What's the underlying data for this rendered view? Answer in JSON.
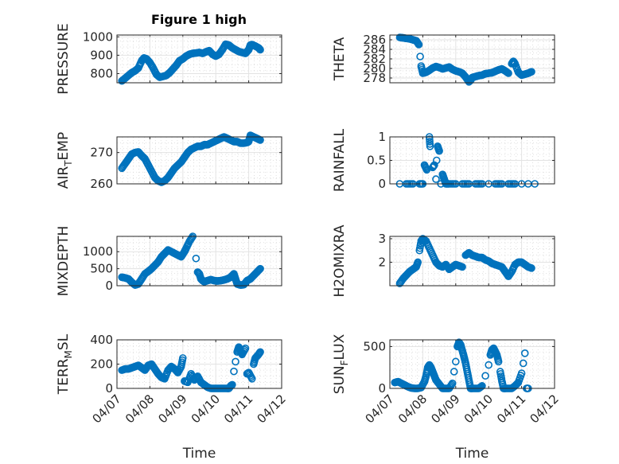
{
  "figure_title": "Figure 1 high",
  "marker_color": "#0072BD",
  "chart_data": [
    {
      "type": "scatter",
      "id": "pressure",
      "title": "Figure 1 high",
      "ylabel": "PRESSURE",
      "ylabel_sub": null,
      "ylim": [
        750,
        1010
      ],
      "yticks": [
        800,
        900,
        1000
      ],
      "xlim": [
        "04/07",
        "04/12"
      ],
      "xticks": [
        "04/07",
        "04/08",
        "04/09",
        "04/10",
        "04/11",
        "04/12"
      ],
      "x": [
        0.15,
        0.25,
        0.35,
        0.45,
        0.55,
        0.65,
        0.75,
        0.82,
        0.9,
        1.0,
        1.1,
        1.2,
        1.3,
        1.4,
        1.5,
        1.6,
        1.7,
        1.8,
        1.9,
        2.0,
        2.1,
        2.2,
        2.3,
        2.4,
        2.5,
        2.6,
        2.7,
        2.8,
        2.9,
        3.0,
        3.1,
        3.2,
        3.3,
        3.4,
        3.5,
        3.6,
        3.7,
        3.8,
        3.9,
        3.95,
        4.0,
        4.05,
        4.1,
        4.2,
        4.3,
        4.35
      ],
      "values": [
        760,
        775,
        790,
        805,
        815,
        830,
        870,
        885,
        880,
        860,
        830,
        795,
        780,
        785,
        790,
        805,
        825,
        845,
        870,
        880,
        895,
        905,
        910,
        912,
        915,
        910,
        918,
        925,
        905,
        895,
        905,
        930,
        960,
        955,
        940,
        930,
        920,
        915,
        910,
        920,
        930,
        955,
        958,
        950,
        940,
        930
      ]
    },
    {
      "type": "scatter",
      "id": "theta",
      "ylabel": "THETA",
      "ylabel_sub": null,
      "ylim": [
        277,
        287
      ],
      "yticks": [
        278,
        280,
        282,
        284,
        286
      ],
      "xlim": [
        "04/07",
        "04/12"
      ],
      "xticks": [
        "04/07",
        "04/08",
        "04/09",
        "04/10",
        "04/11",
        "04/12"
      ],
      "x": [
        0.3,
        0.4,
        0.5,
        0.6,
        0.7,
        0.8,
        0.88,
        0.92,
        0.95,
        1.0,
        1.1,
        1.2,
        1.3,
        1.4,
        1.5,
        1.6,
        1.7,
        1.8,
        1.9,
        2.0,
        2.1,
        2.2,
        2.3,
        2.4,
        2.45,
        2.5,
        2.6,
        2.7,
        2.8,
        2.9,
        3.0,
        3.1,
        3.2,
        3.3,
        3.4,
        3.5,
        3.6,
        3.7,
        3.75,
        3.8,
        3.9,
        4.0,
        4.1,
        4.2,
        4.3
      ],
      "values": [
        286.5,
        286.4,
        286.3,
        286.2,
        286.0,
        285.8,
        285.0,
        282.5,
        280.5,
        279.0,
        279.2,
        279.6,
        280.1,
        280.4,
        280.2,
        279.9,
        280.1,
        280.3,
        279.8,
        279.5,
        279.3,
        279.0,
        278.2,
        277.2,
        277.5,
        278.1,
        278.3,
        278.5,
        278.6,
        278.9,
        279.0,
        279.1,
        279.4,
        279.7,
        279.9,
        279.5,
        279.0,
        281.0,
        281.5,
        281.0,
        279.2,
        278.6,
        278.8,
        279.0,
        279.3
      ]
    },
    {
      "type": "scatter",
      "id": "air_temp",
      "ylabel": "AIR",
      "ylabel_sub": "T",
      "ylabel_rest": "EMP",
      "ylim": [
        260,
        275
      ],
      "yticks": [
        260,
        270
      ],
      "xlim": [
        "04/07",
        "04/12"
      ],
      "xticks": [
        "04/07",
        "04/08",
        "04/09",
        "04/10",
        "04/11",
        "04/12"
      ],
      "x": [
        0.15,
        0.25,
        0.35,
        0.45,
        0.55,
        0.65,
        0.75,
        0.85,
        0.95,
        1.05,
        1.15,
        1.25,
        1.35,
        1.45,
        1.55,
        1.65,
        1.75,
        1.85,
        1.95,
        2.05,
        2.15,
        2.25,
        2.35,
        2.45,
        2.55,
        2.65,
        2.75,
        2.85,
        2.95,
        3.05,
        3.15,
        3.25,
        3.35,
        3.45,
        3.55,
        3.65,
        3.75,
        3.85,
        3.95,
        4.0,
        4.05,
        4.15,
        4.25,
        4.35
      ],
      "values": [
        265,
        266.5,
        268,
        269.5,
        270,
        270.2,
        269,
        268,
        266,
        264,
        262,
        261,
        260.5,
        261,
        262,
        263.5,
        265,
        266,
        267,
        268.5,
        270,
        271,
        271.5,
        272,
        272,
        272.5,
        272.5,
        273,
        273.5,
        274,
        274.5,
        275,
        274.5,
        274,
        273.5,
        273.5,
        273,
        273,
        273.2,
        273.5,
        275.5,
        275,
        274.5,
        274
      ]
    },
    {
      "type": "scatter",
      "id": "rainfall",
      "ylabel": "RAINFALL",
      "ylabel_sub": null,
      "ylim": [
        0,
        1
      ],
      "yticks": [
        0,
        0.5,
        1
      ],
      "xlim": [
        "04/07",
        "04/12"
      ],
      "xticks": [
        "04/07",
        "04/08",
        "04/09",
        "04/10",
        "04/11",
        "04/12"
      ],
      "x": [
        0.3,
        0.5,
        0.7,
        0.9,
        1.0,
        1.05,
        1.12,
        1.2,
        1.22,
        1.3,
        1.35,
        1.4,
        1.42,
        1.45,
        1.5,
        1.55,
        1.6,
        1.65,
        1.7,
        1.8,
        2.0,
        2.2,
        2.4,
        2.6,
        2.8,
        3.0,
        3.2,
        3.4,
        3.6,
        3.8,
        4.0,
        4.2,
        4.4
      ],
      "values": [
        0,
        0,
        0,
        0,
        0,
        0.4,
        0.3,
        1.0,
        0.8,
        0.35,
        0.4,
        0.1,
        0.5,
        0.8,
        0.7,
        0.0,
        0.2,
        0.1,
        0,
        0,
        0,
        0,
        0,
        0,
        0,
        0,
        0,
        0,
        0,
        0,
        0,
        0,
        0
      ]
    },
    {
      "type": "scatter",
      "id": "mixdepth",
      "ylabel": "MIXDEPTH",
      "ylabel_sub": null,
      "ylim": [
        0,
        1450
      ],
      "yticks": [
        0,
        500,
        1000
      ],
      "xlim": [
        "04/07",
        "04/12"
      ],
      "xticks": [
        "04/07",
        "04/08",
        "04/09",
        "04/10",
        "04/11",
        "04/12"
      ],
      "x": [
        0.15,
        0.25,
        0.35,
        0.45,
        0.55,
        0.65,
        0.75,
        0.85,
        0.95,
        1.05,
        1.15,
        1.25,
        1.35,
        1.45,
        1.55,
        1.65,
        1.75,
        1.85,
        1.95,
        2.05,
        2.1,
        2.2,
        2.3,
        2.4,
        2.45,
        2.5,
        2.55,
        2.6,
        2.65,
        2.75,
        2.85,
        2.95,
        3.05,
        3.15,
        3.25,
        3.35,
        3.45,
        3.55,
        3.6,
        3.65,
        3.75,
        3.85,
        3.95,
        4.05,
        4.15,
        4.25,
        4.35
      ],
      "values": [
        250,
        230,
        200,
        100,
        20,
        50,
        200,
        350,
        420,
        500,
        600,
        700,
        850,
        950,
        1050,
        1000,
        950,
        900,
        850,
        1000,
        1100,
        1300,
        1450,
        800,
        400,
        350,
        200,
        150,
        120,
        150,
        180,
        150,
        140,
        150,
        170,
        200,
        250,
        350,
        200,
        50,
        20,
        30,
        150,
        200,
        300,
        400,
        500
      ]
    },
    {
      "type": "scatter",
      "id": "h2omixra",
      "ylabel": "H2OMIXRA",
      "ylabel_sub": null,
      "ylim": [
        1,
        3.1
      ],
      "yticks": [
        2,
        3
      ],
      "xlim": [
        "04/07",
        "04/12"
      ],
      "xticks": [
        "04/07",
        "04/08",
        "04/09",
        "04/10",
        "04/11",
        "04/12"
      ],
      "x": [
        0.3,
        0.4,
        0.5,
        0.6,
        0.7,
        0.8,
        0.85,
        0.9,
        0.95,
        1.0,
        1.1,
        1.2,
        1.3,
        1.4,
        1.5,
        1.6,
        1.7,
        1.8,
        1.9,
        2.0,
        2.1,
        2.2,
        2.3,
        2.4,
        2.5,
        2.6,
        2.7,
        2.8,
        2.9,
        3.0,
        3.1,
        3.2,
        3.3,
        3.4,
        3.5,
        3.6,
        3.7,
        3.8,
        3.9,
        4.0,
        4.1,
        4.2,
        4.3
      ],
      "values": [
        1.1,
        1.3,
        1.45,
        1.6,
        1.7,
        1.8,
        2.0,
        2.5,
        2.9,
        3.0,
        2.9,
        2.6,
        2.3,
        2.0,
        1.85,
        1.8,
        1.9,
        1.7,
        1.8,
        1.9,
        1.85,
        1.8,
        2.3,
        2.4,
        2.3,
        2.25,
        2.2,
        2.2,
        2.1,
        2.05,
        1.95,
        1.9,
        1.85,
        1.8,
        1.6,
        1.4,
        1.6,
        1.9,
        2.0,
        2.0,
        1.9,
        1.8,
        1.75
      ]
    },
    {
      "type": "scatter",
      "id": "terr_msl",
      "ylabel": "TERR",
      "ylabel_sub": "M",
      "ylabel_rest": "SL",
      "ylim": [
        0,
        400
      ],
      "yticks": [
        0,
        200,
        400
      ],
      "xlabel": "Time",
      "xlim": [
        "04/07",
        "04/12"
      ],
      "xticks": [
        "04/07",
        "04/08",
        "04/09",
        "04/10",
        "04/11",
        "04/12"
      ],
      "x": [
        0.15,
        0.25,
        0.35,
        0.45,
        0.55,
        0.65,
        0.75,
        0.85,
        0.95,
        1.05,
        1.15,
        1.25,
        1.35,
        1.45,
        1.55,
        1.65,
        1.75,
        1.85,
        1.95,
        2.0,
        2.05,
        2.15,
        2.25,
        2.35,
        2.45,
        2.55,
        2.65,
        2.75,
        2.85,
        2.95,
        3.05,
        3.15,
        3.25,
        3.35,
        3.4,
        3.45,
        3.5,
        3.55,
        3.6,
        3.65,
        3.7,
        3.75,
        3.8,
        3.9,
        3.95,
        4.0,
        4.1,
        4.15,
        4.2,
        4.3,
        4.35
      ],
      "values": [
        150,
        160,
        160,
        170,
        180,
        190,
        170,
        150,
        190,
        200,
        160,
        120,
        90,
        80,
        150,
        180,
        160,
        130,
        180,
        250,
        60,
        50,
        120,
        70,
        100,
        50,
        30,
        10,
        0,
        0,
        0,
        0,
        0,
        0,
        0,
        20,
        30,
        140,
        220,
        300,
        340,
        310,
        280,
        330,
        120,
        130,
        80,
        200,
        250,
        280,
        300
      ]
    },
    {
      "type": "scatter",
      "id": "sun_flux",
      "ylabel": "SUN",
      "ylabel_sub": "F",
      "ylabel_rest": "LUX",
      "ylim": [
        0,
        580
      ],
      "yticks": [
        0,
        500
      ],
      "xlabel": "Time",
      "xlim": [
        "04/07",
        "04/12"
      ],
      "xticks": [
        "04/07",
        "04/08",
        "04/09",
        "04/10",
        "04/11",
        "04/12"
      ],
      "x": [
        0.15,
        0.25,
        0.35,
        0.45,
        0.55,
        0.65,
        0.75,
        0.85,
        0.95,
        1.05,
        1.1,
        1.15,
        1.2,
        1.25,
        1.3,
        1.35,
        1.4,
        1.5,
        1.6,
        1.7,
        1.8,
        1.9,
        1.95,
        2.0,
        2.05,
        2.1,
        2.15,
        2.2,
        2.25,
        2.3,
        2.35,
        2.4,
        2.45,
        2.5,
        2.6,
        2.7,
        2.8,
        2.9,
        3.0,
        3.05,
        3.1,
        3.15,
        3.2,
        3.25,
        3.3,
        3.35,
        3.4,
        3.45,
        3.5,
        3.6,
        3.7,
        3.8,
        3.9,
        4.0,
        4.05,
        4.1,
        4.15,
        4.2
      ],
      "values": [
        70,
        80,
        60,
        40,
        20,
        5,
        0,
        0,
        10,
        80,
        150,
        250,
        280,
        250,
        200,
        150,
        100,
        50,
        0,
        0,
        0,
        60,
        200,
        320,
        500,
        550,
        520,
        450,
        380,
        300,
        200,
        100,
        0,
        0,
        0,
        0,
        30,
        150,
        280,
        400,
        460,
        480,
        440,
        400,
        320,
        200,
        90,
        0,
        0,
        0,
        0,
        30,
        70,
        180,
        300,
        420,
        0,
        0
      ]
    }
  ]
}
